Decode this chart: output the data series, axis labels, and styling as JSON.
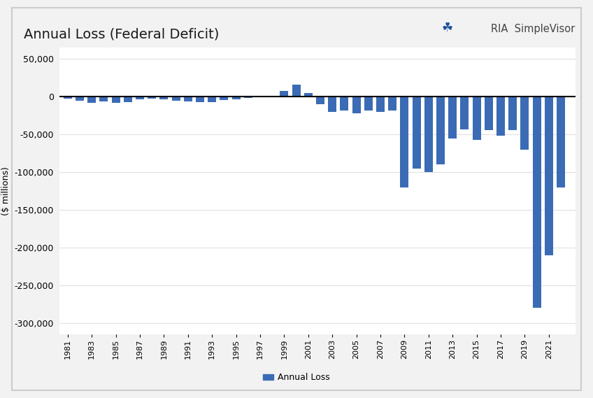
{
  "title": "Annual Loss (Federal Deficit)",
  "ylabel": "($ millions)",
  "bar_color": "#3B6BB5",
  "background_color": "#FFFFFF",
  "outer_bg": "#F2F2F2",
  "ylim_min": -315000,
  "ylim_max": 65000,
  "yticks": [
    50000,
    0,
    -50000,
    -100000,
    -150000,
    -200000,
    -250000,
    -300000
  ],
  "years": [
    1981,
    1982,
    1983,
    1984,
    1985,
    1986,
    1987,
    1988,
    1989,
    1990,
    1991,
    1992,
    1993,
    1994,
    1995,
    1996,
    1997,
    1998,
    1999,
    2000,
    2001,
    2002,
    2003,
    2004,
    2005,
    2006,
    2007,
    2008,
    2009,
    2010,
    2011,
    2012,
    2013,
    2014,
    2015,
    2016,
    2017,
    2018,
    2019,
    2020,
    2021,
    2022
  ],
  "values": [
    -2000,
    -5000,
    -8000,
    -6000,
    -8000,
    -7500,
    -3500,
    -2500,
    -3000,
    -5000,
    -6000,
    -7000,
    -7500,
    -4000,
    -3500,
    -1500,
    -500,
    500,
    8000,
    16000,
    5000,
    -10000,
    -20000,
    -18000,
    -22000,
    -18000,
    -20000,
    -18000,
    -120000,
    -95000,
    -100000,
    -90000,
    -55000,
    -43000,
    -57000,
    -44000,
    -52000,
    -44000,
    -70000,
    -280000,
    -210000,
    -120000
  ],
  "legend_label": "Annual Loss",
  "legend_color": "#3B6BB5",
  "xtick_years": [
    1981,
    1983,
    1985,
    1987,
    1989,
    1991,
    1993,
    1995,
    1997,
    1999,
    2001,
    2003,
    2005,
    2007,
    2009,
    2011,
    2013,
    2015,
    2017,
    2019,
    2021
  ],
  "title_fontsize": 14,
  "ylabel_fontsize": 9,
  "tick_fontsize": 9,
  "xtick_fontsize": 8,
  "border_color": "#CCCCCC",
  "grid_color": "#E0E0E0"
}
